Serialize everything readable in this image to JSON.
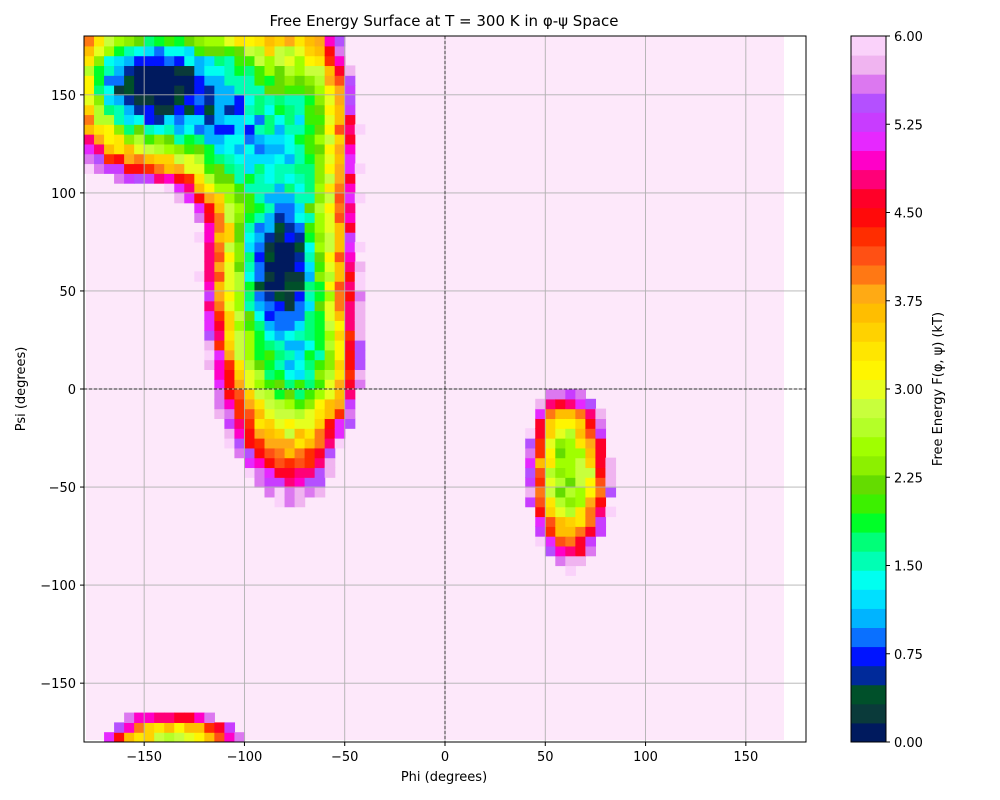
{
  "chart_data": {
    "type": "heatmap",
    "title": "Free Energy Surface at T = 300 K in φ-ψ Space",
    "xlabel": "Phi (degrees)",
    "ylabel": "Psi (degrees)",
    "xlim": [
      -180,
      180
    ],
    "ylim": [
      -180,
      180
    ],
    "xticks": [
      -150,
      -100,
      -50,
      0,
      50,
      100,
      150
    ],
    "yticks": [
      -150,
      -100,
      -50,
      0,
      50,
      100,
      150
    ],
    "xtick_labels": [
      "−150",
      "−100",
      "−50",
      "0",
      "50",
      "100",
      "150"
    ],
    "ytick_labels": [
      "−150",
      "−100",
      "−50",
      "0",
      "50",
      "100",
      "150"
    ],
    "grid": true,
    "zero_lines": true,
    "colorbar": {
      "label": "Free Energy F(φ, ψ) (kT)",
      "range": [
        0,
        6
      ],
      "ticks": [
        0.0,
        0.75,
        1.5,
        2.25,
        3.0,
        3.75,
        4.5,
        5.25,
        6.0
      ],
      "tick_labels": [
        "0.00",
        "0.75",
        "1.50",
        "2.25",
        "3.00",
        "3.75",
        "4.50",
        "5.25",
        "6.00"
      ],
      "levels": 36,
      "colors": [
        "#001a5e",
        "#0a3a3a",
        "#00502a",
        "#002a9a",
        "#0014ff",
        "#0a70ff",
        "#00b4ff",
        "#00e0ff",
        "#00fff0",
        "#00ffb4",
        "#00ff78",
        "#00ff28",
        "#3cf000",
        "#64dc00",
        "#8cf000",
        "#a0ff00",
        "#b4ff28",
        "#c8ff3c",
        "#e6ff1e",
        "#fff500",
        "#ffe600",
        "#ffd200",
        "#ffbe00",
        "#ffaa14",
        "#ff7814",
        "#ff5014",
        "#ff2d00",
        "#ff0a0a",
        "#ff0028",
        "#ff0078",
        "#ff00c8",
        "#e628ff",
        "#c83cff",
        "#b450ff",
        "#dc78f0",
        "#f0b4f0",
        "#fad2fa"
      ],
      "background_color": "#fde8fa"
    },
    "basins": [
      {
        "phi_center": -145,
        "psi_center": 155,
        "min_energy": 0.0
      },
      {
        "phi_center": -82,
        "psi_center": 60,
        "min_energy": 0.0
      },
      {
        "phi_center": 62,
        "psi_center": -45,
        "min_energy": 2.1
      },
      {
        "phi_center": -140,
        "psi_center": -178,
        "min_energy": 2.6
      }
    ]
  }
}
